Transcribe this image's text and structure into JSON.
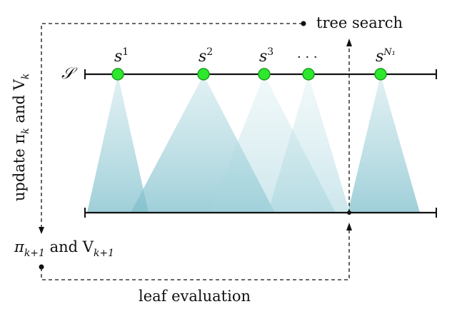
{
  "labels": {
    "tree_search": "tree search",
    "leaf_evaluation": "leaf evaluation",
    "update_left": "update π",
    "update_left_sub": "k",
    "update_and": " and V",
    "update_and_sub": "k",
    "pi_next": "π",
    "pi_next_sub": "k+1",
    "and_v": " and V",
    "v_next_sub": "k+1",
    "state_space": "𝒮",
    "ellipsis": "· · ·"
  },
  "states": [
    {
      "name": "s",
      "sup": "1"
    },
    {
      "name": "s",
      "sup": "2"
    },
    {
      "name": "s",
      "sup": "3"
    },
    {
      "name": "",
      "sup": ""
    },
    {
      "name": "s",
      "sup": "N₁"
    }
  ],
  "colors": {
    "node_fill": "#2ee82e",
    "node_stroke": "#1a9e1a",
    "tree_fill": "#7fbfcc",
    "line": "#111111"
  }
}
